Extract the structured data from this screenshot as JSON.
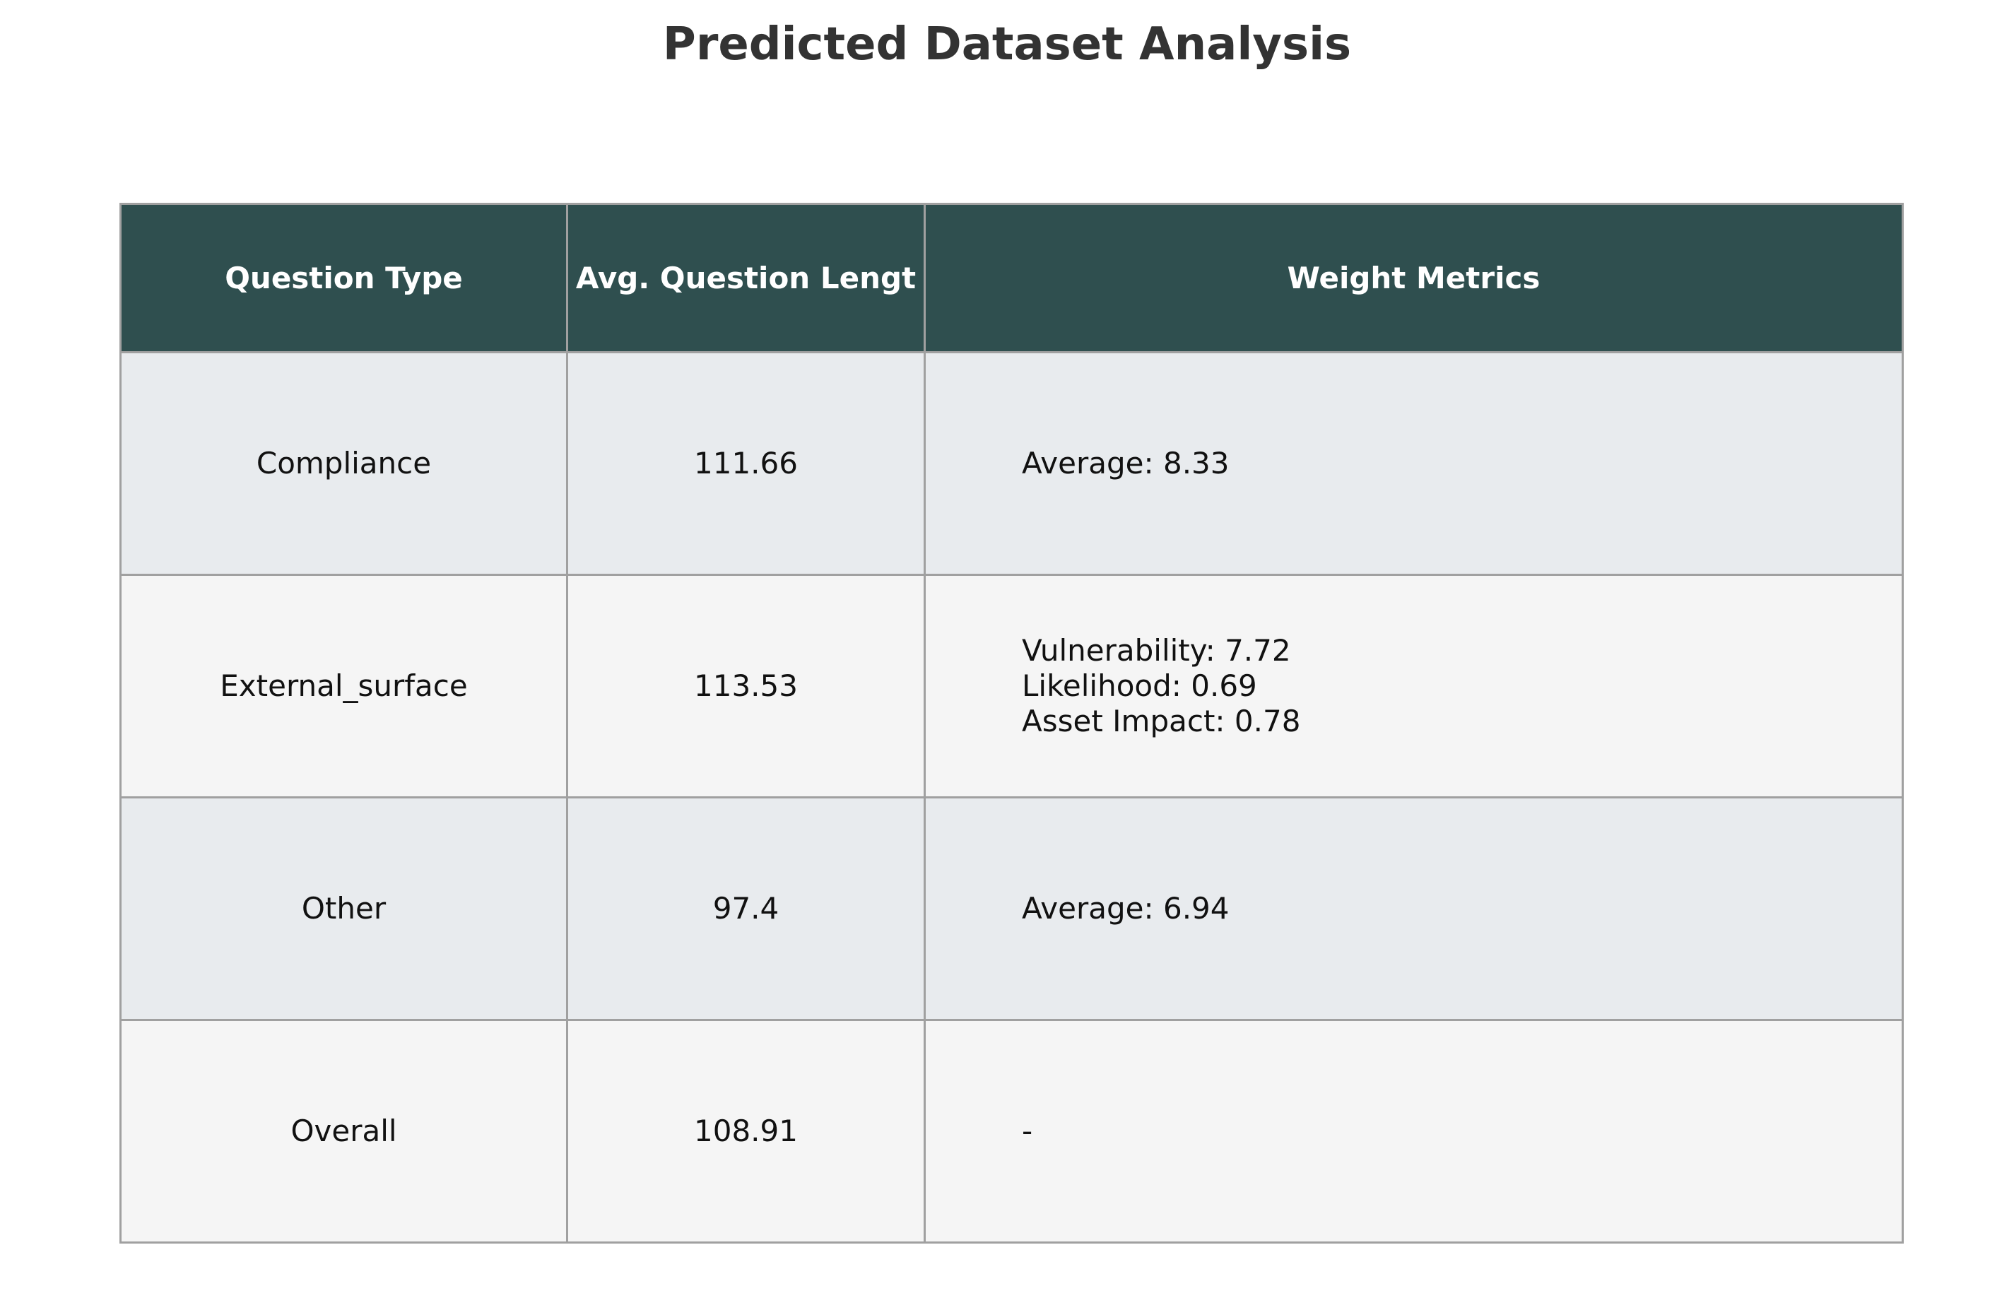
{
  "chart_data": {
    "type": "table",
    "title": "Predicted Dataset Analysis",
    "columns": [
      "Question Type",
      "Avg. Question Lengt",
      "Weight Metrics"
    ],
    "rows": [
      {
        "type": "Compliance",
        "avg_length": "111.66",
        "metrics": [
          "Average: 8.33"
        ]
      },
      {
        "type": "External_surface",
        "avg_length": "113.53",
        "metrics": [
          "Vulnerability: 7.72",
          "Likelihood: 0.69",
          "Asset Impact: 0.78"
        ]
      },
      {
        "type": "Other",
        "avg_length": "97.4",
        "metrics": [
          "Average: 6.94"
        ]
      },
      {
        "type": "Overall",
        "avg_length": "108.91",
        "metrics": [
          "-"
        ]
      }
    ]
  },
  "colors": {
    "header_bg": "#2f4f4f",
    "header_text": "#ffffff",
    "row_odd_bg": "#e8ebee",
    "row_even_bg": "#f5f5f5",
    "border": "#a0a0a0",
    "title_text": "#333333"
  }
}
